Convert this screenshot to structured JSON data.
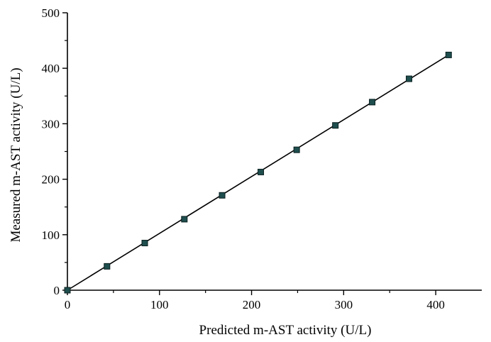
{
  "chart_data": {
    "type": "scatter",
    "title": "",
    "xlabel": "Predicted m-AST activity (U/L)",
    "ylabel": "Measured m-AST activity (U/L)",
    "xlim": [
      0,
      450
    ],
    "ylim": [
      0,
      500
    ],
    "x_ticks": [
      0,
      100,
      200,
      300,
      400
    ],
    "y_ticks": [
      0,
      100,
      200,
      300,
      400,
      500
    ],
    "grid": false,
    "legend": "none",
    "series": [
      {
        "points": [
          {
            "x": 0,
            "y": 0
          },
          {
            "x": 43,
            "y": 43
          },
          {
            "x": 84,
            "y": 85
          },
          {
            "x": 127,
            "y": 128
          },
          {
            "x": 168,
            "y": 171
          },
          {
            "x": 210,
            "y": 213
          },
          {
            "x": 249,
            "y": 253
          },
          {
            "x": 291,
            "y": 297
          },
          {
            "x": 331,
            "y": 339
          },
          {
            "x": 371,
            "y": 381
          },
          {
            "x": 414,
            "y": 424
          }
        ]
      }
    ],
    "fit_line": {
      "x": [
        0,
        414
      ],
      "y": [
        0,
        424
      ]
    },
    "colors": {
      "marker_fill": "#1f4e4e",
      "marker_stroke": "#0b1f1f",
      "line": "#000000",
      "axis": "#000000"
    }
  }
}
